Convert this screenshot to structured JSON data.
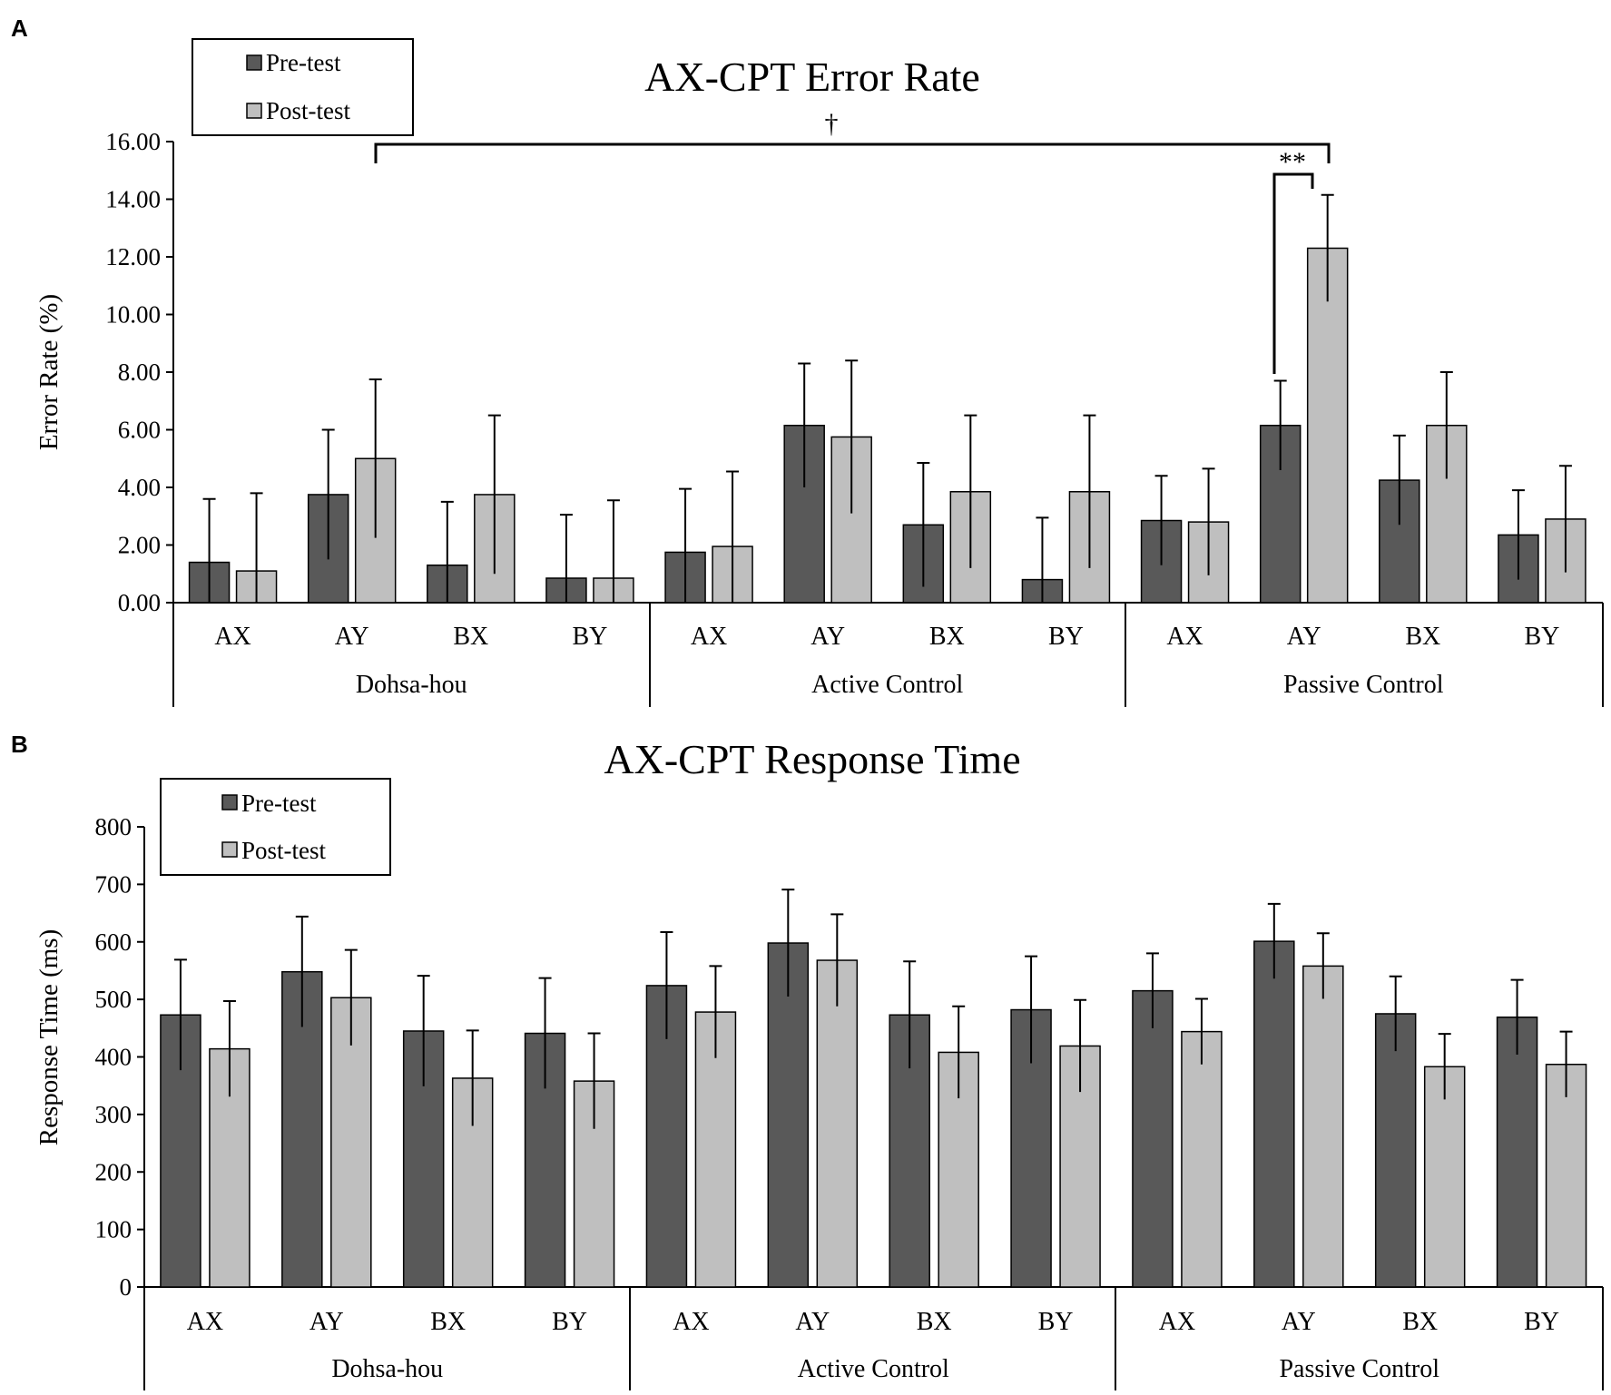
{
  "colors": {
    "pre": "#595959",
    "post": "#bfbfbf",
    "axis": "#000000"
  },
  "chart_data": [
    {
      "panel": "A",
      "type": "bar",
      "title": "AX-CPT Error Rate",
      "xlabel": "",
      "ylabel": "Error Rate (%)",
      "ylim": [
        0,
        16
      ],
      "yticks": [
        "0.00",
        "2.00",
        "4.00",
        "6.00",
        "8.00",
        "10.00",
        "12.00",
        "14.00",
        "16.00"
      ],
      "groups": [
        "Dohsa-hou",
        "Active Control",
        "Passive Control"
      ],
      "categories": [
        "AX",
        "AY",
        "BX",
        "BY",
        "AX",
        "AY",
        "BX",
        "BY",
        "AX",
        "AY",
        "BX",
        "BY"
      ],
      "legend": [
        "Pre-test",
        "Post-test"
      ],
      "legend_position": "top-left",
      "series": [
        {
          "name": "Pre-test",
          "values": [
            1.4,
            3.75,
            1.3,
            0.85,
            1.75,
            6.15,
            2.7,
            0.8,
            2.85,
            6.15,
            4.25,
            2.35
          ],
          "errors": [
            2.2,
            2.25,
            2.2,
            2.2,
            2.2,
            2.15,
            2.15,
            2.15,
            1.55,
            1.55,
            1.55,
            1.55
          ]
        },
        {
          "name": "Post-test",
          "values": [
            1.1,
            5.0,
            3.75,
            0.85,
            1.95,
            5.75,
            3.85,
            3.85,
            2.8,
            12.3,
            6.15,
            2.9
          ],
          "errors": [
            2.7,
            2.75,
            2.75,
            2.7,
            2.6,
            2.65,
            2.65,
            2.65,
            1.85,
            1.85,
            1.85,
            1.85
          ]
        }
      ],
      "annotations": [
        {
          "text": "†",
          "from": "Dohsa-hou AY",
          "to": "Passive Control AY post-test",
          "level": 15.6
        },
        {
          "text": "**",
          "from": "Passive Control AY pre-test",
          "to": "Passive Control AY post-test",
          "level": 14.9
        }
      ]
    },
    {
      "panel": "B",
      "type": "bar",
      "title": "AX-CPT Response Time",
      "xlabel": "",
      "ylabel": "Response Time (ms)",
      "ylim": [
        0,
        800
      ],
      "yticks": [
        "0",
        "100",
        "200",
        "300",
        "400",
        "500",
        "600",
        "700",
        "800"
      ],
      "groups": [
        "Dohsa-hou",
        "Active Control",
        "Passive Control"
      ],
      "categories": [
        "AX",
        "AY",
        "BX",
        "BY",
        "AX",
        "AY",
        "BX",
        "BY",
        "AX",
        "AY",
        "BX",
        "BY"
      ],
      "legend": [
        "Pre-test",
        "Post-test"
      ],
      "legend_position": "top-left",
      "series": [
        {
          "name": "Pre-test",
          "values": [
            473,
            548,
            445,
            441,
            524,
            598,
            473,
            482,
            515,
            601,
            475,
            469
          ],
          "errors": [
            96,
            96,
            96,
            96,
            93,
            93,
            93,
            93,
            65,
            65,
            65,
            65
          ]
        },
        {
          "name": "Post-test",
          "values": [
            414,
            503,
            363,
            358,
            478,
            568,
            408,
            419,
            444,
            558,
            383,
            387
          ],
          "errors": [
            83,
            83,
            83,
            83,
            80,
            80,
            80,
            80,
            57,
            57,
            57,
            57
          ]
        }
      ],
      "annotations": []
    }
  ]
}
